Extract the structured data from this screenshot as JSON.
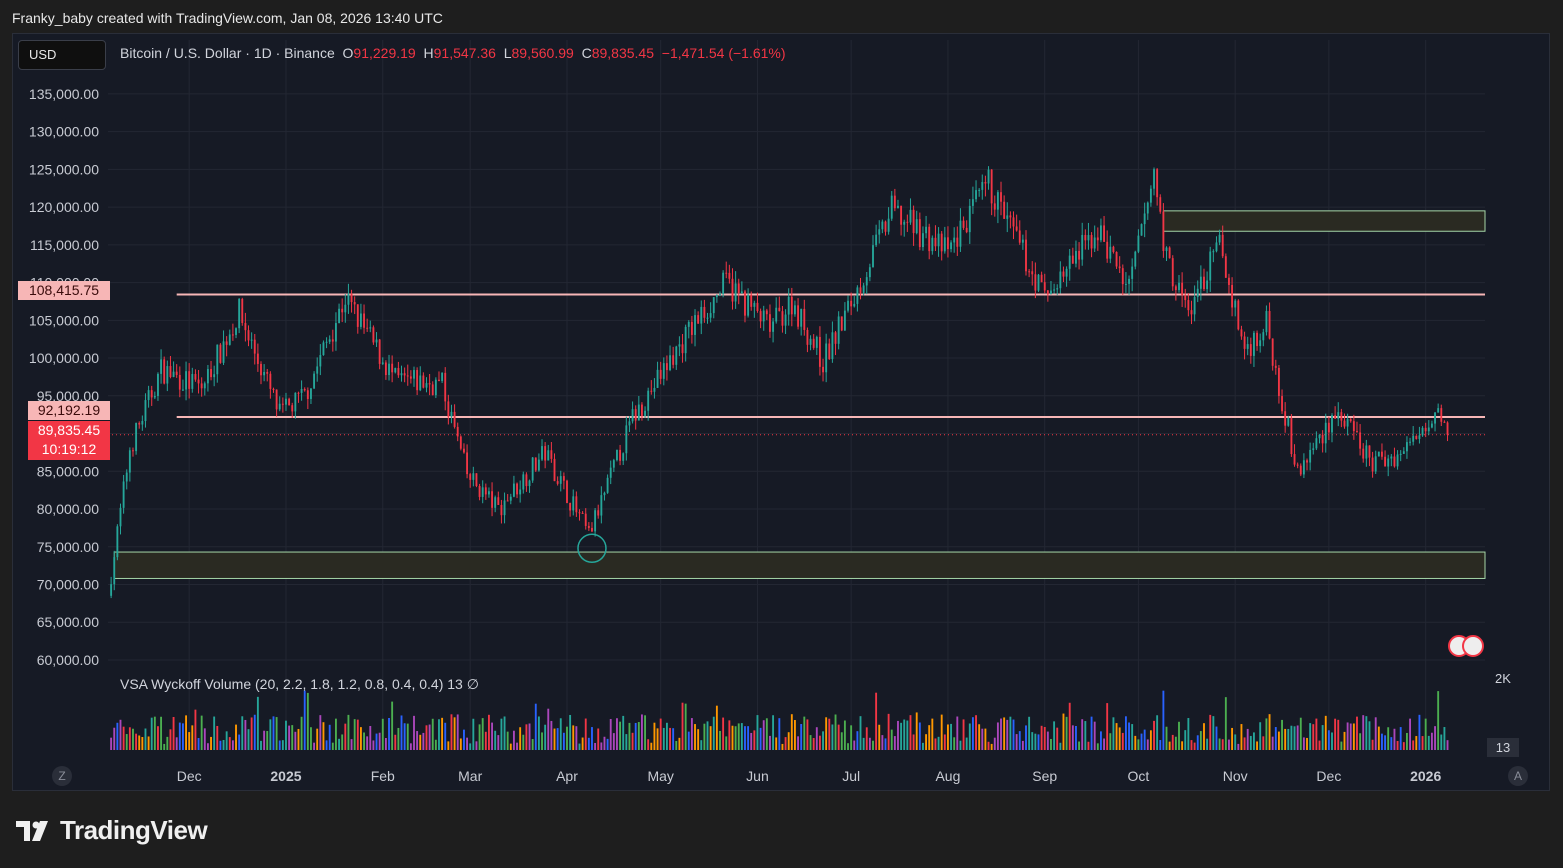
{
  "header": "Franky_baby created with TradingView.com, Jan 08, 2026 13:40 UTC",
  "symbol_button": "USD",
  "legend": {
    "title": "Bitcoin / U.S. Dollar · 1D · Binance",
    "o_label": "O",
    "o": "91,229.19",
    "h_label": "H",
    "h": "91,547.36",
    "l_label": "L",
    "l": "89,560.99",
    "c_label": "C",
    "c": "89,835.45",
    "change": "−1,471.54 (−1.61%)"
  },
  "indicator": "VSA Wyckoff Volume (20, 2.2, 1.8, 1.2, 0.8, 0.4, 0.4)  13  ∅",
  "price_tags": {
    "resistance": "108,415.75",
    "support": "92,192.19",
    "last": "89,835.45",
    "countdown": "10:19:12"
  },
  "volume_scale": "2K",
  "volume_tag": "13",
  "corner_left": "Z",
  "corner_right": "A",
  "brand": "TradingView",
  "colors": {
    "up": "#26a69a",
    "down": "#f23645",
    "line": "#f7b6b6",
    "zone_border": "#a5d6a7",
    "zone_fill": "#2a2a22",
    "grid": "#232733"
  },
  "chart_data": {
    "type": "candlestick",
    "timeframe": "1D",
    "y_axis": {
      "ticks": [
        60000,
        65000,
        70000,
        75000,
        80000,
        85000,
        90000,
        95000,
        100000,
        105000,
        110000,
        115000,
        120000,
        125000,
        130000,
        135000
      ],
      "tick_labels": [
        "60,000.00",
        "65,000.00",
        "70,000.00",
        "75,000.00",
        "80,000.00",
        "85,000.00",
        "90,000.00",
        "95,000.00",
        "100,000.00",
        "105,000.00",
        "110,000.00",
        "115,000.00",
        "120,000.00",
        "125,000.00",
        "130,000.00",
        "135,000.00"
      ],
      "range": [
        59600,
        137500
      ]
    },
    "x_axis": {
      "range": [
        "2024-11-05",
        "2026-01-20"
      ],
      "labels": [
        {
          "date": "2024-12-01",
          "text": "Dec",
          "bold": false
        },
        {
          "date": "2025-01-01",
          "text": "2025",
          "bold": true
        },
        {
          "date": "2025-02-01",
          "text": "Feb",
          "bold": false
        },
        {
          "date": "2025-03-01",
          "text": "Mar",
          "bold": false
        },
        {
          "date": "2025-04-01",
          "text": "Apr",
          "bold": false
        },
        {
          "date": "2025-05-01",
          "text": "May",
          "bold": false
        },
        {
          "date": "2025-06-01",
          "text": "Jun",
          "bold": false
        },
        {
          "date": "2025-07-01",
          "text": "Jul",
          "bold": false
        },
        {
          "date": "2025-08-01",
          "text": "Aug",
          "bold": false
        },
        {
          "date": "2025-09-01",
          "text": "Sep",
          "bold": false
        },
        {
          "date": "2025-10-01",
          "text": "Oct",
          "bold": false
        },
        {
          "date": "2025-11-01",
          "text": "Nov",
          "bold": false
        },
        {
          "date": "2025-12-01",
          "text": "Dec",
          "bold": false
        },
        {
          "date": "2026-01-01",
          "text": "2026",
          "bold": true
        }
      ]
    },
    "price_path": [
      [
        "2024-11-05",
        68500
      ],
      [
        "2024-11-12",
        88000
      ],
      [
        "2024-11-22",
        98500
      ],
      [
        "2024-12-05",
        96000
      ],
      [
        "2024-12-17",
        106000
      ],
      [
        "2024-12-30",
        92500
      ],
      [
        "2025-01-07",
        95000
      ],
      [
        "2025-01-20",
        108000
      ],
      [
        "2025-02-05",
        97000
      ],
      [
        "2025-02-20",
        96500
      ],
      [
        "2025-02-28",
        84500
      ],
      [
        "2025-03-10",
        80000
      ],
      [
        "2025-03-25",
        87500
      ],
      [
        "2025-04-08",
        76500
      ],
      [
        "2025-04-22",
        92000
      ],
      [
        "2025-05-10",
        103500
      ],
      [
        "2025-05-22",
        110000
      ],
      [
        "2025-06-05",
        104000
      ],
      [
        "2025-06-12",
        107500
      ],
      [
        "2025-06-22",
        99500
      ],
      [
        "2025-07-03",
        109000
      ],
      [
        "2025-07-14",
        119500
      ],
      [
        "2025-08-01",
        114000
      ],
      [
        "2025-08-14",
        123000
      ],
      [
        "2025-09-01",
        108000
      ],
      [
        "2025-09-18",
        117000
      ],
      [
        "2025-09-28",
        109000
      ],
      [
        "2025-10-06",
        124500
      ],
      [
        "2025-10-10",
        113000
      ],
      [
        "2025-10-17",
        106000
      ],
      [
        "2025-10-27",
        115000
      ],
      [
        "2025-11-04",
        101000
      ],
      [
        "2025-11-11",
        104500
      ],
      [
        "2025-11-21",
        84500
      ],
      [
        "2025-12-03",
        93000
      ],
      [
        "2025-12-15",
        86000
      ],
      [
        "2025-12-25",
        87500
      ],
      [
        "2026-01-05",
        94000
      ],
      [
        "2026-01-08",
        89835
      ]
    ],
    "horizontal_lines": [
      {
        "price": 108415.75,
        "from": "2024-11-27",
        "to": "2026-01-20"
      },
      {
        "price": 92192.19,
        "from": "2024-11-27",
        "to": "2026-01-20"
      }
    ],
    "last_price": 89835.45,
    "zones": [
      {
        "from": "2024-11-07",
        "to": "2026-01-20",
        "low": 70800,
        "high": 74300
      },
      {
        "from": "2025-10-09",
        "to": "2026-01-20",
        "low": 116800,
        "high": 119500
      }
    ],
    "marker": {
      "date": "2025-04-09",
      "price": 74800,
      "type": "circle"
    },
    "volume": {
      "scale_max": 2000,
      "last_value": 13
    }
  }
}
